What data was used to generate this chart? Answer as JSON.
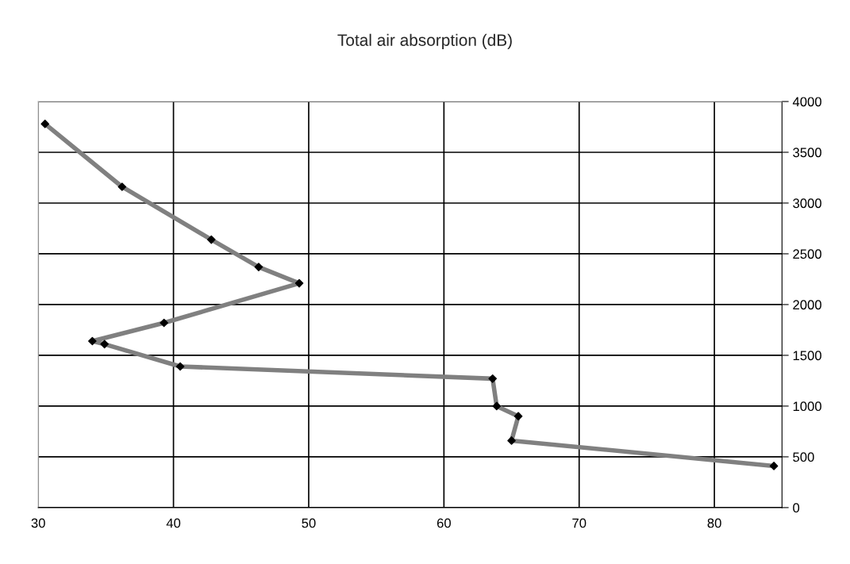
{
  "chart_data": {
    "type": "line",
    "title": "Total air absorption (dB)",
    "series": [
      {
        "color": "#808080",
        "x": [
          30.5,
          36.2,
          42.8,
          46.3,
          49.3,
          39.3,
          34.0,
          34.9,
          40.5,
          63.6,
          63.9,
          65.5,
          65.0,
          84.4
        ],
        "values": [
          3780,
          3160,
          2640,
          2370,
          2210,
          1820,
          1640,
          1610,
          1390,
          1270,
          1000,
          900,
          660,
          410
        ]
      }
    ],
    "xlim": [
      30,
      85
    ],
    "xticks": [
      30,
      40,
      50,
      60,
      70,
      80
    ],
    "ylim": [
      0,
      4000
    ],
    "yticks": [
      0,
      500,
      1000,
      1500,
      2000,
      2500,
      3000,
      3500,
      4000
    ],
    "grid": true,
    "marker": "diamond",
    "line_style": "solid",
    "legend": false
  }
}
